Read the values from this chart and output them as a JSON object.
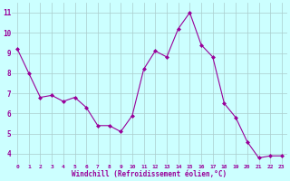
{
  "x": [
    0,
    1,
    2,
    3,
    4,
    5,
    6,
    7,
    8,
    9,
    10,
    11,
    12,
    13,
    14,
    15,
    16,
    17,
    18,
    19,
    20,
    21,
    22,
    23
  ],
  "y": [
    9.2,
    8.0,
    6.8,
    6.9,
    6.6,
    6.8,
    6.3,
    5.4,
    5.4,
    5.1,
    5.9,
    8.2,
    9.1,
    8.8,
    10.2,
    11.0,
    9.4,
    8.8,
    6.5,
    5.8,
    4.6,
    3.8,
    3.9,
    3.9
  ],
  "line_color": "#990099",
  "marker": "D",
  "marker_size": 2.0,
  "bg_color": "#ccffff",
  "grid_color": "#aacccc",
  "xlabel": "Windchill (Refroidissement éolien,°C)",
  "xlabel_color": "#990099",
  "tick_color": "#990099",
  "ylim": [
    3.5,
    11.5
  ],
  "yticks": [
    4,
    5,
    6,
    7,
    8,
    9,
    10,
    11
  ],
  "xticks": [
    0,
    1,
    2,
    3,
    4,
    5,
    6,
    7,
    8,
    9,
    10,
    11,
    12,
    13,
    14,
    15,
    16,
    17,
    18,
    19,
    20,
    21,
    22,
    23
  ],
  "figwidth": 3.2,
  "figheight": 2.0,
  "dpi": 100
}
